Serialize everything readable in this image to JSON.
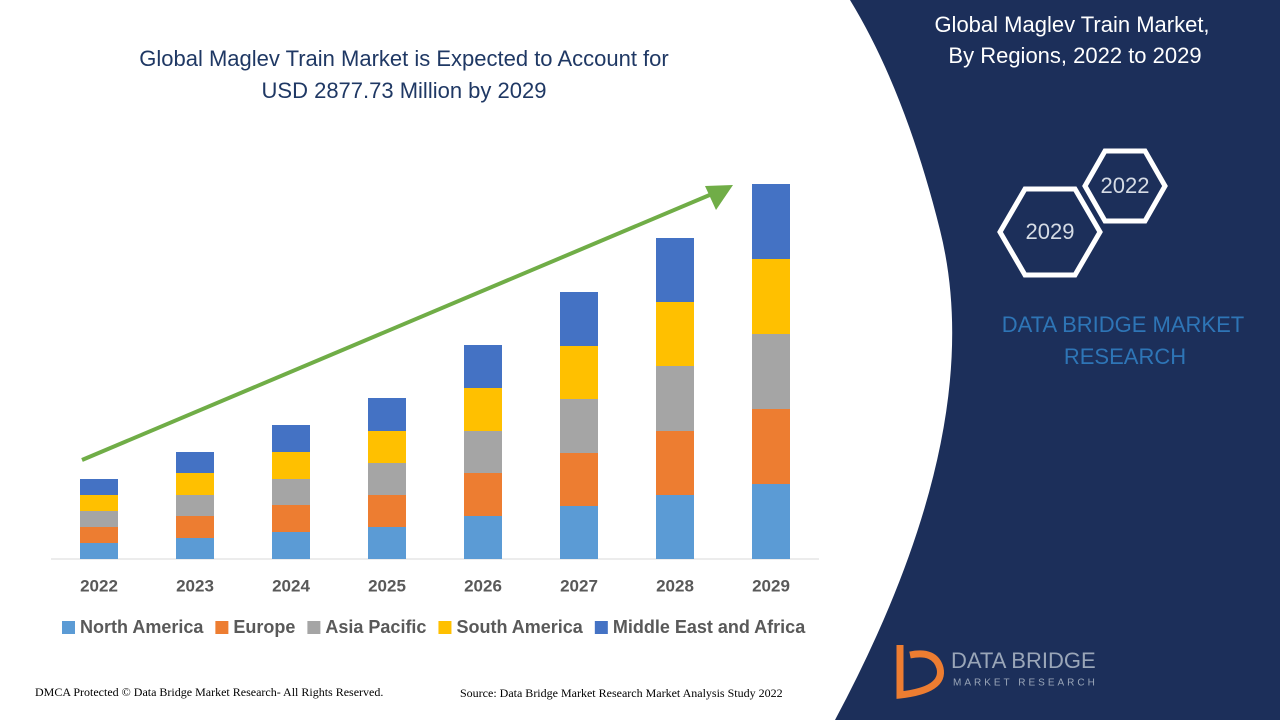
{
  "chart_data": {
    "type": "bar",
    "stacked": true,
    "title": [
      "Global Maglev Train Market is Expected to Account for",
      "USD 2877.73 Million by 2029"
    ],
    "categories": [
      "2022",
      "2023",
      "2024",
      "2025",
      "2026",
      "2027",
      "2028",
      "2029"
    ],
    "series": [
      {
        "name": "North America",
        "color": "#5b9bd5",
        "values": [
          16,
          21,
          27,
          32,
          43,
          53,
          64,
          75
        ]
      },
      {
        "name": "Europe",
        "color": "#ed7d31",
        "values": [
          16,
          22,
          27,
          32,
          43,
          53,
          64,
          75
        ]
      },
      {
        "name": "Asia Pacific",
        "color": "#a5a5a5",
        "values": [
          16,
          21,
          26,
          32,
          42,
          54,
          65,
          75
        ]
      },
      {
        "name": "South America",
        "color": "#ffc000",
        "values": [
          16,
          22,
          27,
          32,
          43,
          53,
          64,
          75
        ]
      },
      {
        "name": "Middle East and Africa",
        "color": "#4472c4",
        "values": [
          16,
          21,
          27,
          33,
          43,
          54,
          64,
          75
        ]
      }
    ]
  },
  "panel": {
    "title": [
      "Global Maglev Train Market,",
      "By Regions, 2022 to 2029"
    ],
    "hexagons": [
      "2022",
      "2029"
    ],
    "brand": [
      "DATA BRIDGE MARKET",
      "RESEARCH"
    ],
    "logo": [
      "DATA BRIDGE",
      "MARKET RESEARCH"
    ]
  },
  "footer": {
    "copyright": "DMCA Protected © Data Bridge Market Research- All Rights Reserved.",
    "source": "Source: Data Bridge Market Research Market Analysis Study 2022"
  }
}
